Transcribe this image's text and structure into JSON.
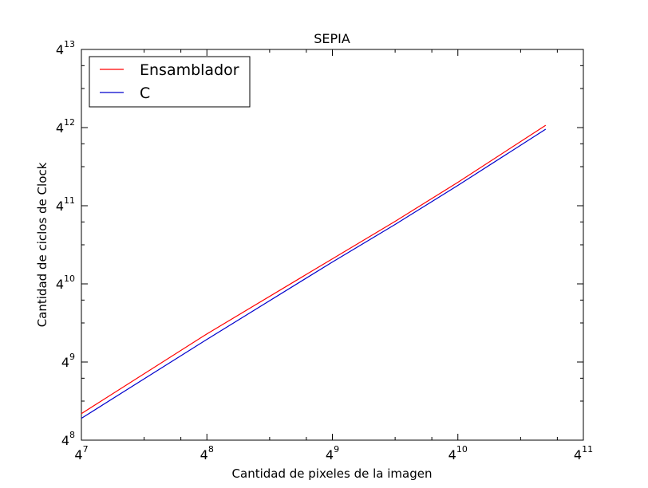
{
  "chart_data": {
    "type": "line",
    "title": "SEPIA",
    "xlabel": "Cantidad de pixeles de la imagen",
    "ylabel": "Cantidad de ciclos de Clock",
    "scale": "log4",
    "x_exponent_range": [
      7,
      11
    ],
    "y_exponent_range": [
      8,
      13
    ],
    "x_ticks": [
      {
        "base": "4",
        "exp": "7",
        "value": 7
      },
      {
        "base": "4",
        "exp": "8",
        "value": 8
      },
      {
        "base": "4",
        "exp": "9",
        "value": 9
      },
      {
        "base": "4",
        "exp": "10",
        "value": 10
      },
      {
        "base": "4",
        "exp": "11",
        "value": 11
      }
    ],
    "y_ticks": [
      {
        "base": "4",
        "exp": "8",
        "value": 8
      },
      {
        "base": "4",
        "exp": "9",
        "value": 9
      },
      {
        "base": "4",
        "exp": "10",
        "value": 10
      },
      {
        "base": "4",
        "exp": "11",
        "value": 11
      },
      {
        "base": "4",
        "exp": "12",
        "value": 12
      },
      {
        "base": "4",
        "exp": "13",
        "value": 13
      }
    ],
    "grid": false,
    "legend_position": "top-left",
    "series": [
      {
        "name": "Ensamblador",
        "color": "#ff0000",
        "x_log4": [
          7,
          8,
          9,
          9.5,
          10,
          10.7
        ],
        "y_log4": [
          8.34,
          9.36,
          10.32,
          10.8,
          11.3,
          12.03
        ]
      },
      {
        "name": "C",
        "color": "#0000cc",
        "x_log4": [
          7,
          8,
          9,
          9.5,
          10,
          10.7
        ],
        "y_log4": [
          8.28,
          9.29,
          10.28,
          10.76,
          11.26,
          11.98
        ]
      }
    ]
  }
}
